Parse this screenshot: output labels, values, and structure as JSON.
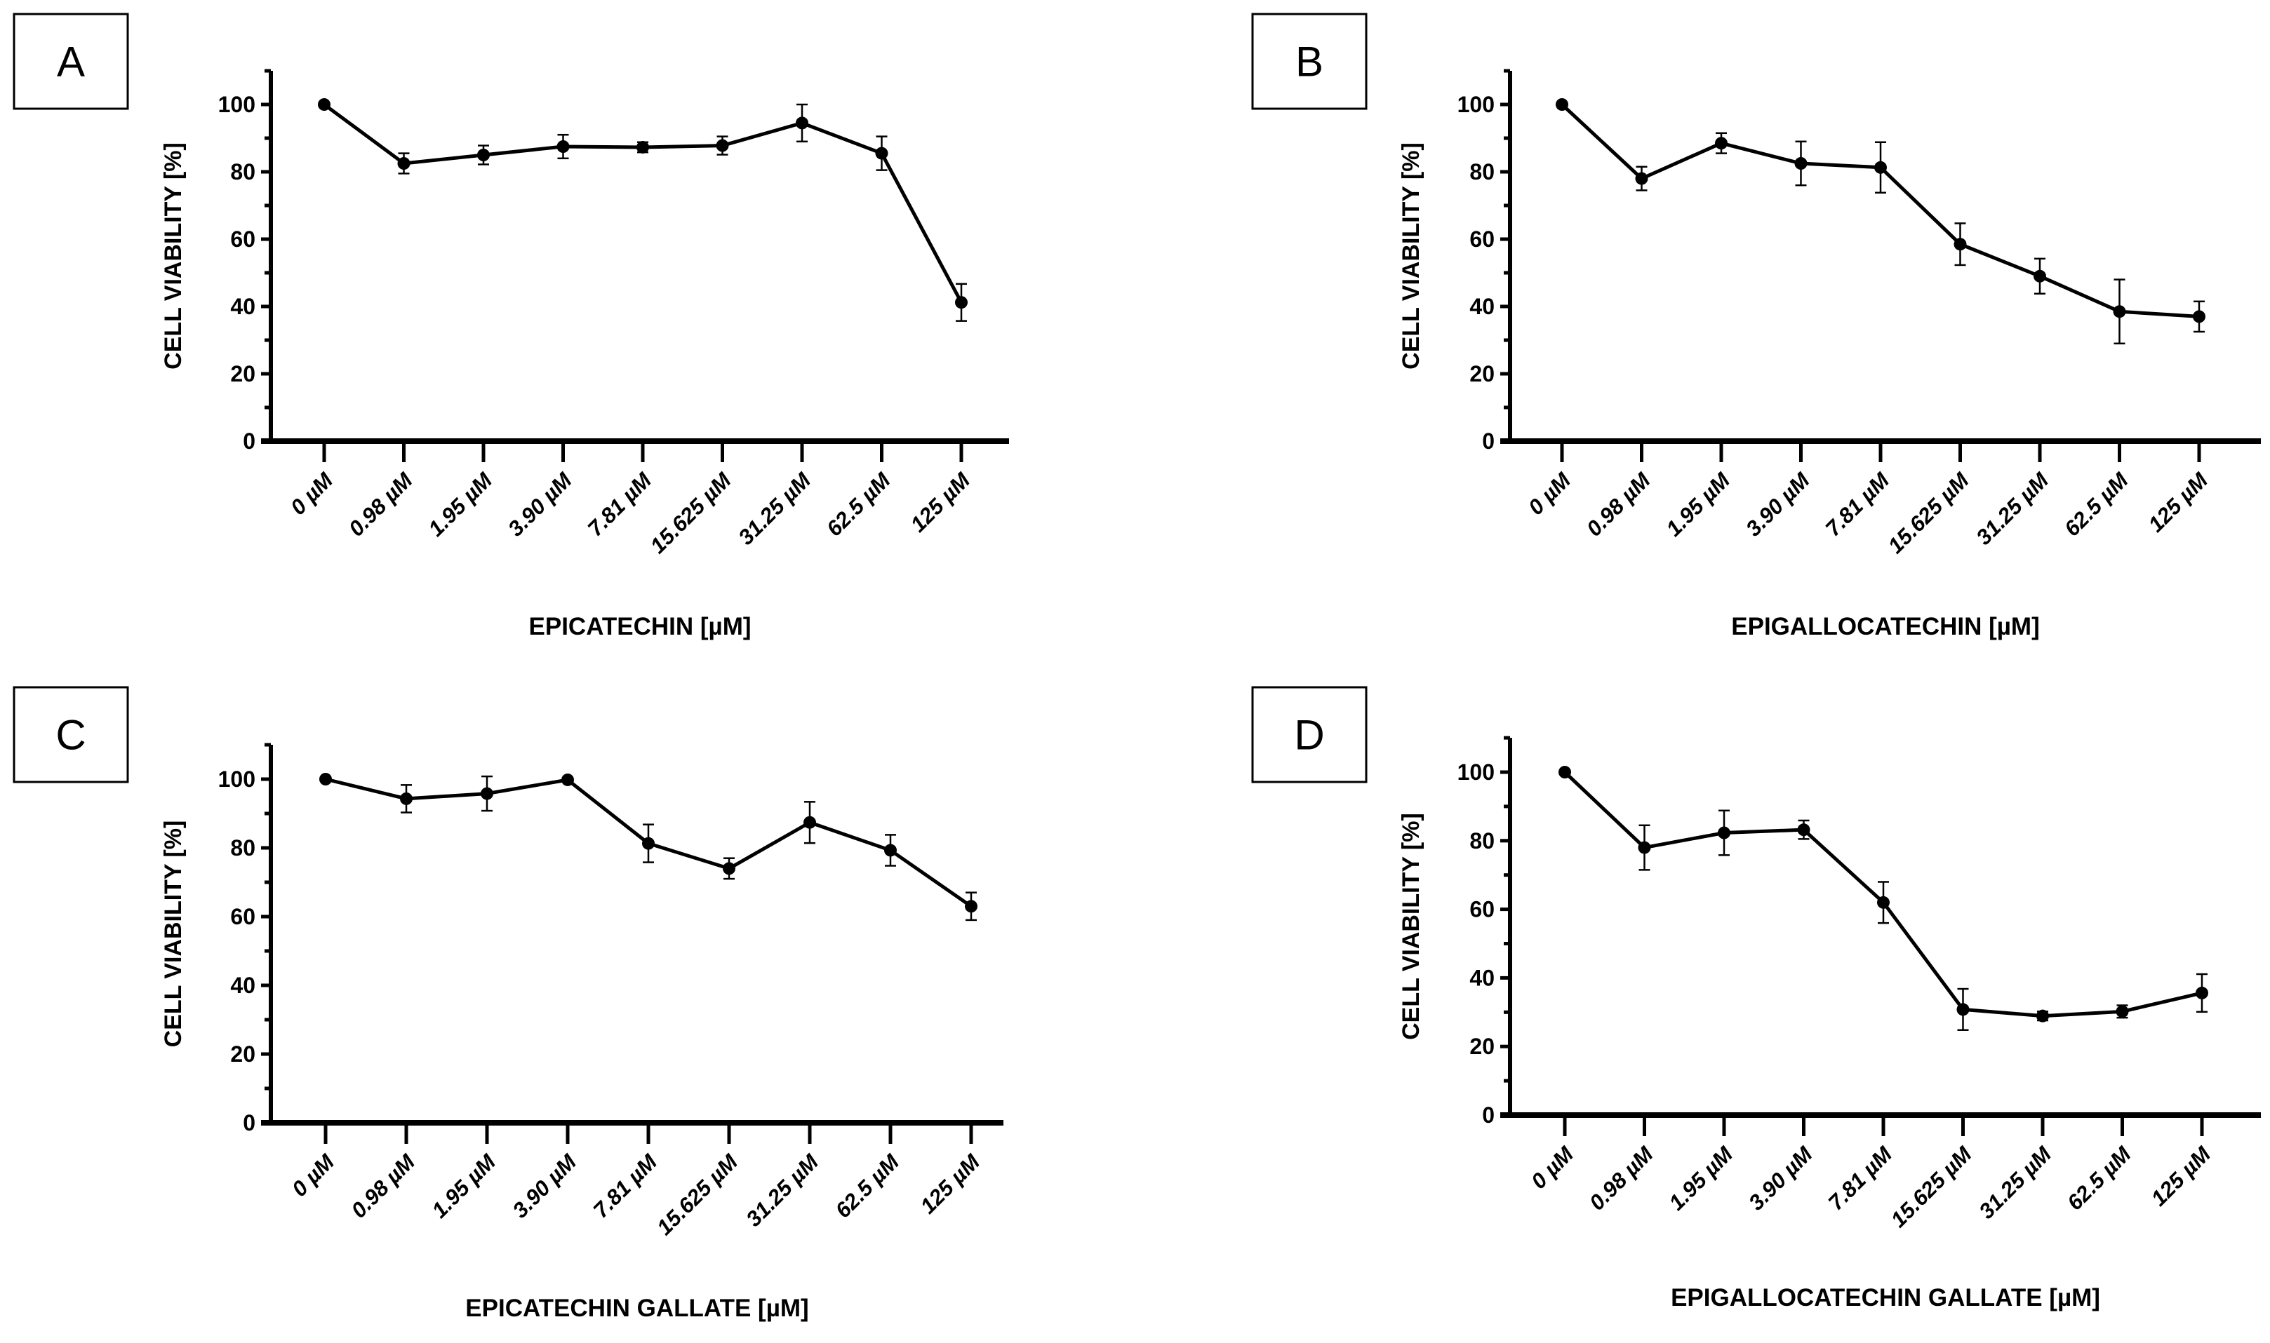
{
  "chart_data": [
    {
      "panel": "A",
      "type": "line",
      "xlabel": "EPICATECHIN [µM]",
      "ylabel": "CELL VIABILITY [%]",
      "categories": [
        "0 µM",
        "0.98 µM",
        "1.95 µM",
        "3.90 µM",
        "7.81 µM",
        "15.625 µM",
        "31.25 µM",
        "62.5 µM",
        "125 µM"
      ],
      "values": [
        100,
        82.5,
        85,
        87.5,
        87.3,
        87.8,
        94.5,
        85.5,
        41.2
      ],
      "errors": [
        0,
        3,
        2.8,
        3.5,
        1.5,
        2.7,
        5.5,
        5,
        5.5
      ],
      "ylim": [
        0,
        110
      ],
      "yticks": [
        "0",
        "20",
        "40",
        "60",
        "80",
        "100"
      ],
      "grid": false
    },
    {
      "panel": "B",
      "type": "line",
      "xlabel": "EPIGALLOCATECHIN [µM]",
      "ylabel": "CELL VIABILITY [%]",
      "categories": [
        "0 µM",
        "0.98 µM",
        "1.95 µM",
        "3.90 µM",
        "7.81 µM",
        "15.625 µM",
        "31.25 µM",
        "62.5 µM",
        "125 µM"
      ],
      "values": [
        100,
        78,
        88.5,
        82.5,
        81.3,
        58.5,
        49,
        38.5,
        37
      ],
      "errors": [
        0,
        3.5,
        3,
        6.5,
        7.5,
        6.2,
        5.2,
        9.5,
        4.5
      ],
      "ylim": [
        0,
        110
      ],
      "yticks": [
        "0",
        "20",
        "40",
        "60",
        "80",
        "100"
      ],
      "grid": false
    },
    {
      "panel": "C",
      "type": "line",
      "xlabel": "EPICATECHIN GALLATE [µM]",
      "ylabel": "CELL VIABILITY [%]",
      "categories": [
        "0 µM",
        "0.98 µM",
        "1.95 µM",
        "3.90 µM",
        "7.81 µM",
        "15.625 µM",
        "31.25 µM",
        "62.5 µM",
        "125 µM"
      ],
      "values": [
        100,
        94.3,
        95.8,
        99.8,
        81.3,
        74,
        87.4,
        79.3,
        63
      ],
      "errors": [
        0,
        4,
        5,
        0.5,
        5.5,
        3,
        6,
        4.5,
        4
      ],
      "ylim": [
        0,
        110
      ],
      "yticks": [
        "0",
        "20",
        "40",
        "60",
        "80",
        "100"
      ],
      "grid": false
    },
    {
      "panel": "D",
      "type": "line",
      "xlabel": "EPIGALLOCATECHIN GALLATE [µM]",
      "ylabel": "CELL VIABILITY [%]",
      "categories": [
        "0 µM",
        "0.98 µM",
        "1.95 µM",
        "3.90 µM",
        "7.81 µM",
        "15.625 µM",
        "31.25 µM",
        "62.5 µM",
        "125 µM"
      ],
      "values": [
        100,
        78,
        82.3,
        83.2,
        62,
        30.8,
        28.9,
        30.2,
        35.6
      ],
      "errors": [
        0,
        6.5,
        6.5,
        2.7,
        6,
        6,
        1.3,
        1.8,
        5.5
      ],
      "ylim": [
        0,
        110
      ],
      "yticks": [
        "0",
        "20",
        "40",
        "60",
        "80",
        "100"
      ],
      "grid": false
    }
  ]
}
